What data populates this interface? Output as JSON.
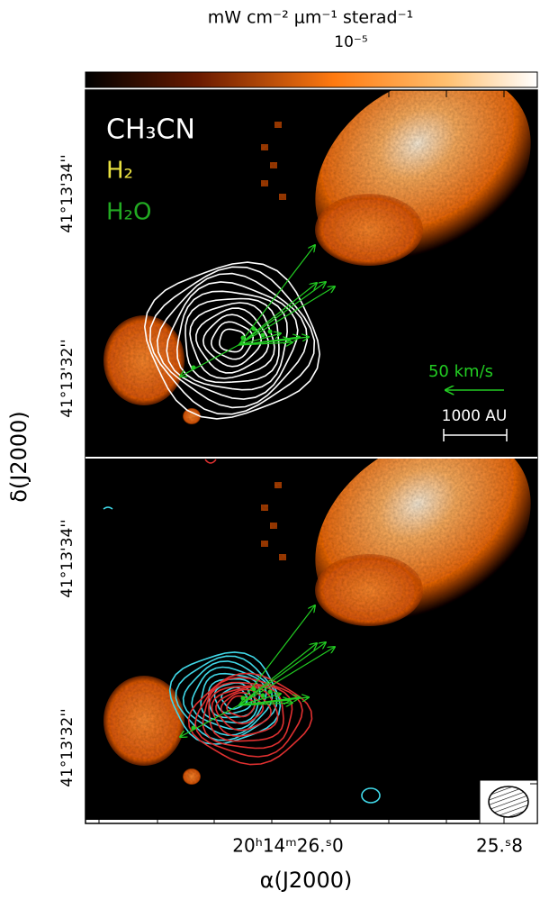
{
  "colorbar": {
    "label": "mW cm⁻² μm⁻¹ sterad⁻¹",
    "scale": "10⁻⁵"
  },
  "legend": {
    "items": [
      "CH₃CN",
      "H₂",
      "H₂O"
    ]
  },
  "scale_bars": {
    "velocity": "50 km/s",
    "length": "1000 AU"
  },
  "y_axis": {
    "label": "δ(J2000)",
    "ticks": [
      "41°13'34''",
      "41°13'32''"
    ]
  },
  "x_axis": {
    "label": "α(J2000)",
    "ticks": [
      "20ʰ14ᵐ26.ˢ0",
      "25.ˢ8"
    ]
  }
}
